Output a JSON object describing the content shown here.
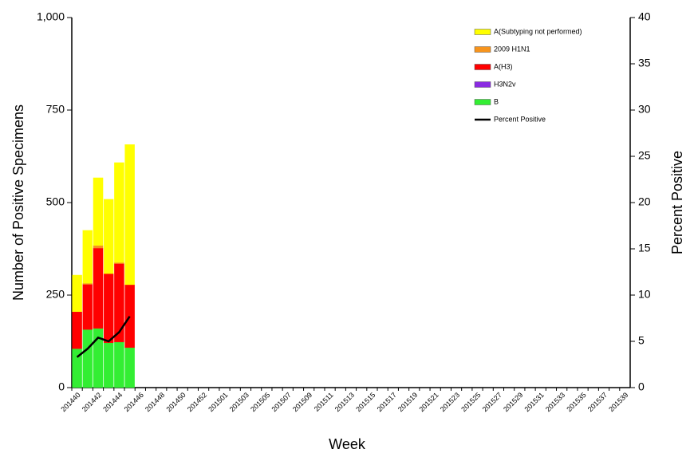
{
  "chart_data": {
    "type": "bar",
    "stacked": true,
    "x_label": "Week",
    "y_label": "Number of Positive Specimens",
    "y2_label": "Percent Positive",
    "categories": [
      "201440",
      null,
      "201442",
      null,
      "201444",
      null,
      "201446",
      null,
      "201448",
      null,
      "201450",
      null,
      "201452",
      null,
      "201501",
      null,
      "201503",
      null,
      "201505",
      null,
      "201507",
      null,
      "201509",
      null,
      "201511",
      null,
      "201513",
      null,
      "201515",
      null,
      "201517",
      null,
      "201519",
      null,
      "201521",
      null,
      "201523",
      null,
      "201525",
      null,
      "201527",
      null,
      "201529",
      null,
      "201531",
      null,
      "201533",
      null,
      "201535",
      null,
      "201537",
      null,
      "201539"
    ],
    "series": [
      {
        "name": "A(Subtyping not performed)",
        "color": "#ffff00",
        "values": [
          99,
          143,
          183,
          201,
          270,
          379,
          null,
          null,
          null,
          null,
          null,
          null,
          null,
          null,
          null,
          null,
          null,
          null,
          null,
          null,
          null,
          null,
          null,
          null,
          null,
          null,
          null,
          null,
          null,
          null,
          null,
          null,
          null,
          null,
          null,
          null,
          null,
          null,
          null,
          null,
          null,
          null,
          null,
          null,
          null,
          null,
          null,
          null,
          null,
          null,
          null,
          null,
          null
        ]
      },
      {
        "name": "2009 H1N1",
        "color": "#f7941d",
        "values": [
          0,
          3,
          7,
          0,
          3,
          0,
          null,
          null,
          null,
          null,
          null,
          null,
          null,
          null,
          null,
          null,
          null,
          null,
          null,
          null,
          null,
          null,
          null,
          null,
          null,
          null,
          null,
          null,
          null,
          null,
          null,
          null,
          null,
          null,
          null,
          null,
          null,
          null,
          null,
          null,
          null,
          null,
          null,
          null,
          null,
          null,
          null,
          null,
          null,
          null,
          null,
          null,
          null
        ]
      },
      {
        "name": "A(H3)",
        "color": "#ff0000",
        "values": [
          100,
          122,
          217,
          187,
          212,
          170,
          null,
          null,
          null,
          null,
          null,
          null,
          null,
          null,
          null,
          null,
          null,
          null,
          null,
          null,
          null,
          null,
          null,
          null,
          null,
          null,
          null,
          null,
          null,
          null,
          null,
          null,
          null,
          null,
          null,
          null,
          null,
          null,
          null,
          null,
          null,
          null,
          null,
          null,
          null,
          null,
          null,
          null,
          null,
          null,
          null,
          null,
          null
        ]
      },
      {
        "name": "H3N2v",
        "color": "#8a2be2",
        "values": [
          0,
          0,
          0,
          0,
          0,
          0,
          null,
          null,
          null,
          null,
          null,
          null,
          null,
          null,
          null,
          null,
          null,
          null,
          null,
          null,
          null,
          null,
          null,
          null,
          null,
          null,
          null,
          null,
          null,
          null,
          null,
          null,
          null,
          null,
          null,
          null,
          null,
          null,
          null,
          null,
          null,
          null,
          null,
          null,
          null,
          null,
          null,
          null,
          null,
          null,
          null,
          null,
          null
        ]
      },
      {
        "name": "B",
        "color": "#33ee33",
        "values": [
          105,
          157,
          160,
          121,
          123,
          108,
          null,
          null,
          null,
          null,
          null,
          null,
          null,
          null,
          null,
          null,
          null,
          null,
          null,
          null,
          null,
          null,
          null,
          null,
          null,
          null,
          null,
          null,
          null,
          null,
          null,
          null,
          null,
          null,
          null,
          null,
          null,
          null,
          null,
          null,
          null,
          null,
          null,
          null,
          null,
          null,
          null,
          null,
          null,
          null,
          null,
          null,
          null
        ]
      },
      {
        "name": "Percent Positive",
        "axis": "y2",
        "color": "#000000",
        "values": [
          3.3,
          4.2,
          5.4,
          5.0,
          6.0,
          7.7,
          null,
          null,
          null,
          null,
          null,
          null,
          null,
          null,
          null,
          null,
          null,
          null,
          null,
          null,
          null,
          null,
          null,
          null,
          null,
          null,
          null,
          null,
          null,
          null,
          null,
          null,
          null,
          null,
          null,
          null,
          null,
          null,
          null,
          null,
          null,
          null,
          null,
          null,
          null,
          null,
          null,
          null,
          null,
          null,
          null,
          null,
          null
        ]
      }
    ],
    "ylim": [
      0,
      1000
    ],
    "yticks": [
      0,
      250,
      500,
      750,
      {
        "value": 1000,
        "label": "1,000"
      }
    ],
    "y2lim": [
      0,
      40
    ],
    "y2ticks": [
      0,
      5,
      10,
      15,
      20,
      25,
      30,
      35,
      40
    ],
    "grid": false,
    "legend": "upper right"
  }
}
